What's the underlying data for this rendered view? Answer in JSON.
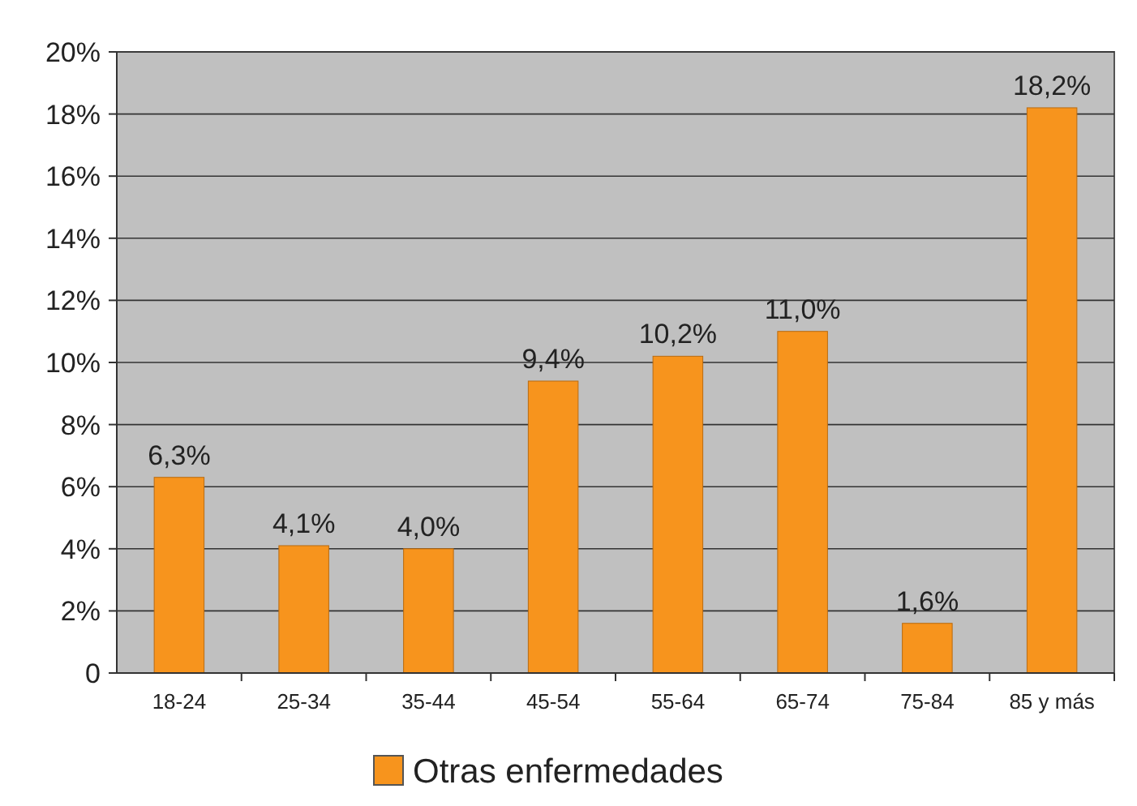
{
  "chart_data": {
    "type": "bar",
    "categories": [
      "18-24",
      "25-34",
      "35-44",
      "45-54",
      "55-64",
      "65-74",
      "75-84",
      "85 y más"
    ],
    "series": [
      {
        "name": "Otras enfermedades",
        "color": "#f7941d",
        "values": [
          6.3,
          4.1,
          4.0,
          9.4,
          10.2,
          11.0,
          1.6,
          18.2
        ]
      }
    ],
    "value_labels": [
      "6,3%",
      "4,1%",
      "4,0%",
      "9,4%",
      "10,2%",
      "11,0%",
      "1,6%",
      "18,2%"
    ],
    "ylim": [
      0,
      20
    ],
    "yticks": [
      0,
      {
        "value": 2,
        "label": "2%"
      },
      {
        "value": 4,
        "label": "4%"
      },
      {
        "value": 6,
        "label": "6%"
      },
      {
        "value": 8,
        "label": "8%"
      },
      {
        "value": 10,
        "label": "10%"
      },
      {
        "value": 12,
        "label": "12%"
      },
      {
        "value": 14,
        "label": "14%"
      },
      {
        "value": 16,
        "label": "16%"
      },
      {
        "value": 18,
        "label": "18%"
      },
      {
        "value": 20,
        "label": "20%"
      }
    ],
    "grid": "y",
    "legend": "bottom"
  }
}
